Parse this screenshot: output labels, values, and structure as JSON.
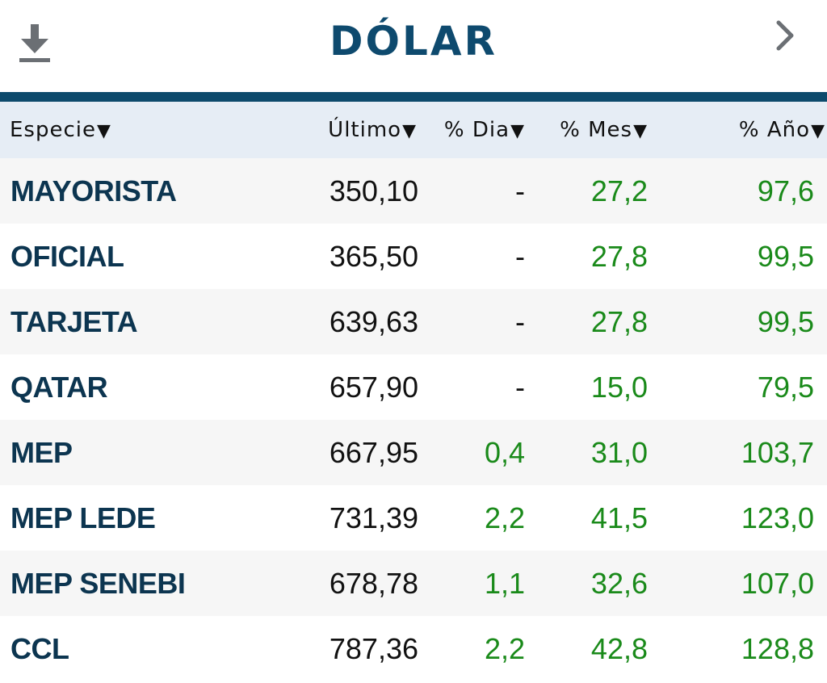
{
  "header": {
    "title": "DÓLAR"
  },
  "icons": {
    "download": "download-icon",
    "next": "chevron-right-icon"
  },
  "colors": {
    "title": "#0e4a6e",
    "rule": "#0d4a6c",
    "header_bg": "#e6edf5",
    "name": "#0c3550",
    "positive": "#1a8a1a"
  },
  "table": {
    "columns": [
      "Especie",
      "Último",
      "% Dia",
      "% Mes",
      "% Año"
    ],
    "sort_arrow": "▼",
    "rows": [
      {
        "name": "MAYORISTA",
        "last": "350,10",
        "day": "-",
        "month": "27,2",
        "year": "97,6"
      },
      {
        "name": "OFICIAL",
        "last": "365,50",
        "day": "-",
        "month": "27,8",
        "year": "99,5"
      },
      {
        "name": "TARJETA",
        "last": "639,63",
        "day": "-",
        "month": "27,8",
        "year": "99,5"
      },
      {
        "name": "QATAR",
        "last": "657,90",
        "day": "-",
        "month": "15,0",
        "year": "79,5"
      },
      {
        "name": "MEP",
        "last": "667,95",
        "day": "0,4",
        "month": "31,0",
        "year": "103,7"
      },
      {
        "name": "MEP LEDE",
        "last": "731,39",
        "day": "2,2",
        "month": "41,5",
        "year": "123,0"
      },
      {
        "name": "MEP SENEBI",
        "last": "678,78",
        "day": "1,1",
        "month": "32,6",
        "year": "107,0"
      },
      {
        "name": "CCL",
        "last": "787,36",
        "day": "2,2",
        "month": "42,8",
        "year": "128,8"
      }
    ]
  }
}
